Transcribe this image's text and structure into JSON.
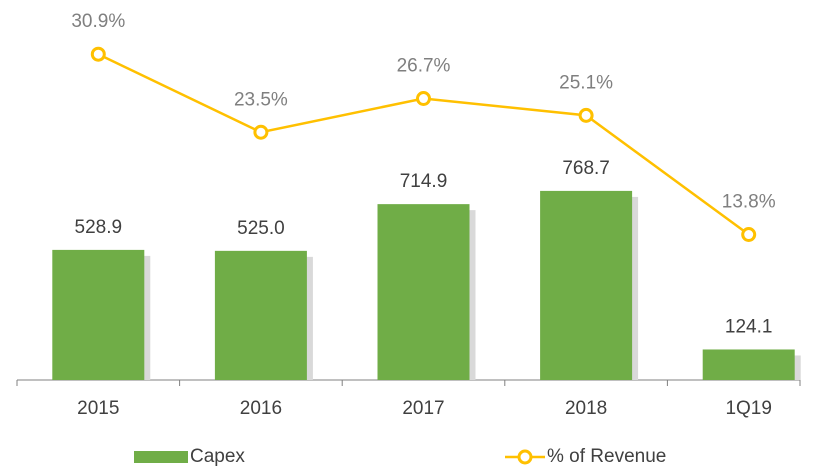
{
  "chart_data": {
    "type": "bar_line",
    "categories": [
      "2015",
      "2016",
      "2017",
      "2018",
      "1Q19"
    ],
    "series": [
      {
        "name": "Capex",
        "type": "bar",
        "color": "#70ad47",
        "values": [
          528.9,
          525.0,
          714.9,
          768.7,
          124.1
        ],
        "value_labels": [
          "528.9",
          "525.0",
          "714.9",
          "768.7",
          "124.1"
        ]
      },
      {
        "name": "% of Revenue",
        "type": "line",
        "axis": "y2",
        "color": "#ffc000",
        "values": [
          30.9,
          23.5,
          26.7,
          25.1,
          13.8
        ],
        "value_labels": [
          "30.9%",
          "23.5%",
          "26.7%",
          "25.1%",
          "13.8%"
        ]
      }
    ],
    "ylim": [
      0,
      1500
    ],
    "y2lim": [
      0,
      35
    ],
    "grid": false,
    "legend": "bottom"
  }
}
